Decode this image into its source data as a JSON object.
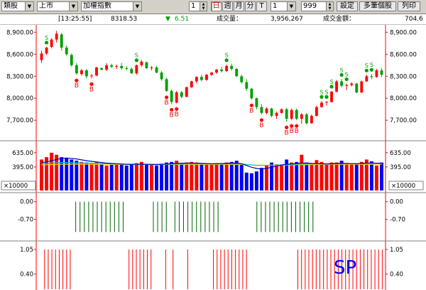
{
  "toolbar": {
    "period": "類股",
    "market": "上市",
    "index": "加權指數",
    "count1": "1",
    "buttons": [
      "日",
      "週",
      "月",
      "分",
      "T"
    ],
    "count2": "1",
    "count3": "999",
    "settings": "設定",
    "multi": "多筆個股",
    "print": "列印"
  },
  "infobar": {
    "time": "[13:25:55]",
    "price": "8318.53",
    "change_arrow": "▼",
    "change": "6.51",
    "volume_label": "成交量：",
    "volume": "3,956,267",
    "amount_label": "成交金額：",
    "amount": "704.6"
  },
  "axes": {
    "price_ticks": [
      "8,900.00",
      "8,600.00",
      "8,300.00",
      "8,000.00",
      "7,700.00"
    ],
    "volume_ticks": [
      "635.00",
      "395.00"
    ],
    "volume_unit": "×10000",
    "ind1_ticks": [
      "0.00",
      "-0.70"
    ],
    "ind2_ticks": [
      "1.05",
      "0.40"
    ]
  },
  "overlay_text": "SP",
  "colors": {
    "up": "#ff0000",
    "down": "#00a000",
    "vol_up": "#ff0000",
    "vol_down": "#0000ff",
    "ma1": "#0000c0",
    "ma2": "#00c8c8",
    "ma3": "#ffd000",
    "axis": "#ff0000",
    "ind_green": "#006400",
    "ind_red": "#ff0000",
    "sp_text": "#0000ff",
    "b_mark": "#ff0000",
    "s_mark": "#00a000"
  },
  "chart_data": {
    "type": "candlestick",
    "price_range": [
      7450,
      9000
    ],
    "volume_range": [
      0,
      800
    ],
    "candles": [
      {
        "o": 8520,
        "h": 8650,
        "l": 8480,
        "c": 8610
      },
      {
        "o": 8610,
        "h": 8700,
        "l": 8590,
        "c": 8690
      },
      {
        "o": 8700,
        "h": 8820,
        "l": 8680,
        "c": 8800
      },
      {
        "o": 8800,
        "h": 8920,
        "l": 8760,
        "c": 8880
      },
      {
        "o": 8870,
        "h": 8890,
        "l": 8650,
        "c": 8690
      },
      {
        "o": 8690,
        "h": 8720,
        "l": 8580,
        "c": 8600
      },
      {
        "o": 8590,
        "h": 8610,
        "l": 8430,
        "c": 8450
      },
      {
        "o": 8450,
        "h": 8480,
        "l": 8320,
        "c": 8340
      },
      {
        "o": 8330,
        "h": 8400,
        "l": 8310,
        "c": 8380
      },
      {
        "o": 8380,
        "h": 8400,
        "l": 8270,
        "c": 8300
      },
      {
        "o": 8300,
        "h": 8330,
        "l": 8270,
        "c": 8310
      },
      {
        "o": 8310,
        "h": 8430,
        "l": 8300,
        "c": 8420
      },
      {
        "o": 8410,
        "h": 8420,
        "l": 8380,
        "c": 8390
      },
      {
        "o": 8390,
        "h": 8480,
        "l": 8370,
        "c": 8450
      },
      {
        "o": 8450,
        "h": 8470,
        "l": 8410,
        "c": 8430
      },
      {
        "o": 8430,
        "h": 8460,
        "l": 8400,
        "c": 8440
      },
      {
        "o": 8440,
        "h": 8480,
        "l": 8390,
        "c": 8410
      },
      {
        "o": 8410,
        "h": 8440,
        "l": 8380,
        "c": 8400
      },
      {
        "o": 8400,
        "h": 8420,
        "l": 8330,
        "c": 8340
      },
      {
        "o": 8340,
        "h": 8460,
        "l": 8320,
        "c": 8450
      },
      {
        "o": 8450,
        "h": 8520,
        "l": 8430,
        "c": 8500
      },
      {
        "o": 8490,
        "h": 8500,
        "l": 8400,
        "c": 8410
      },
      {
        "o": 8410,
        "h": 8440,
        "l": 8380,
        "c": 8420
      },
      {
        "o": 8420,
        "h": 8440,
        "l": 8340,
        "c": 8350
      },
      {
        "o": 8350,
        "h": 8370,
        "l": 8240,
        "c": 8260
      },
      {
        "o": 8260,
        "h": 8280,
        "l": 8090,
        "c": 8100
      },
      {
        "o": 8100,
        "h": 8120,
        "l": 7920,
        "c": 7950
      },
      {
        "o": 7940,
        "h": 8100,
        "l": 7930,
        "c": 8080
      },
      {
        "o": 8080,
        "h": 8100,
        "l": 8000,
        "c": 8020
      },
      {
        "o": 8020,
        "h": 8160,
        "l": 8010,
        "c": 8150
      },
      {
        "o": 8150,
        "h": 8240,
        "l": 8140,
        "c": 8230
      },
      {
        "o": 8230,
        "h": 8300,
        "l": 8200,
        "c": 8290
      },
      {
        "o": 8290,
        "h": 8320,
        "l": 8230,
        "c": 8250
      },
      {
        "o": 8250,
        "h": 8330,
        "l": 8240,
        "c": 8320
      },
      {
        "o": 8320,
        "h": 8360,
        "l": 8300,
        "c": 8350
      },
      {
        "o": 8350,
        "h": 8400,
        "l": 8330,
        "c": 8390
      },
      {
        "o": 8390,
        "h": 8430,
        "l": 8350,
        "c": 8370
      },
      {
        "o": 8370,
        "h": 8460,
        "l": 8360,
        "c": 8440
      },
      {
        "o": 8440,
        "h": 8470,
        "l": 8380,
        "c": 8400
      },
      {
        "o": 8400,
        "h": 8410,
        "l": 8290,
        "c": 8300
      },
      {
        "o": 8300,
        "h": 8320,
        "l": 8200,
        "c": 8220
      },
      {
        "o": 8220,
        "h": 8260,
        "l": 8100,
        "c": 8130
      },
      {
        "o": 8130,
        "h": 8140,
        "l": 7980,
        "c": 8000
      },
      {
        "o": 8000,
        "h": 8010,
        "l": 7850,
        "c": 7880
      },
      {
        "o": 7880,
        "h": 7920,
        "l": 7780,
        "c": 7800
      },
      {
        "o": 7800,
        "h": 7880,
        "l": 7780,
        "c": 7860
      },
      {
        "o": 7860,
        "h": 7870,
        "l": 7740,
        "c": 7760
      },
      {
        "o": 7760,
        "h": 7820,
        "l": 7720,
        "c": 7800
      },
      {
        "o": 7800,
        "h": 7860,
        "l": 7790,
        "c": 7850
      },
      {
        "o": 7850,
        "h": 7870,
        "l": 7680,
        "c": 7720
      },
      {
        "o": 7720,
        "h": 7860,
        "l": 7700,
        "c": 7840
      },
      {
        "o": 7840,
        "h": 7860,
        "l": 7700,
        "c": 7720
      },
      {
        "o": 7720,
        "h": 7800,
        "l": 7650,
        "c": 7780
      },
      {
        "o": 7780,
        "h": 7800,
        "l": 7640,
        "c": 7660
      },
      {
        "o": 7660,
        "h": 7780,
        "l": 7650,
        "c": 7760
      },
      {
        "o": 7760,
        "h": 7900,
        "l": 7750,
        "c": 7880
      },
      {
        "o": 7880,
        "h": 7960,
        "l": 7870,
        "c": 7940
      },
      {
        "o": 7940,
        "h": 7960,
        "l": 7900,
        "c": 7950
      },
      {
        "o": 7950,
        "h": 8100,
        "l": 7940,
        "c": 8090
      },
      {
        "o": 8090,
        "h": 8250,
        "l": 8080,
        "c": 8230
      },
      {
        "o": 8230,
        "h": 8260,
        "l": 8150,
        "c": 8170
      },
      {
        "o": 8170,
        "h": 8200,
        "l": 8110,
        "c": 8180
      },
      {
        "o": 8180,
        "h": 8220,
        "l": 8160,
        "c": 8200
      },
      {
        "o": 8200,
        "h": 8210,
        "l": 8070,
        "c": 8080
      },
      {
        "o": 8080,
        "h": 8240,
        "l": 8070,
        "c": 8230
      },
      {
        "o": 8230,
        "h": 8320,
        "l": 8220,
        "c": 8300
      },
      {
        "o": 8300,
        "h": 8330,
        "l": 8260,
        "c": 8290
      },
      {
        "o": 8290,
        "h": 8400,
        "l": 8280,
        "c": 8380
      },
      {
        "o": 8380,
        "h": 8410,
        "l": 8290,
        "c": 8320
      }
    ],
    "volumes": [
      520,
      560,
      635,
      600,
      560,
      540,
      520,
      500,
      480,
      470,
      460,
      480,
      440,
      420,
      430,
      450,
      440,
      420,
      430,
      460,
      480,
      440,
      430,
      420,
      450,
      470,
      480,
      500,
      460,
      470,
      480,
      470,
      460,
      440,
      430,
      460,
      450,
      470,
      480,
      500,
      430,
      300,
      290,
      320,
      380,
      420,
      470,
      440,
      430,
      520,
      470,
      480,
      600,
      470,
      440,
      510,
      480,
      430,
      470,
      470,
      500,
      460,
      440,
      450,
      480,
      520,
      490,
      420,
      470
    ],
    "ma1": [
      470,
      480,
      500,
      520,
      540,
      545,
      540,
      530,
      515,
      500,
      490,
      480,
      470,
      460,
      455,
      450,
      445,
      440,
      438,
      440,
      442,
      440,
      438,
      436,
      440,
      444,
      450,
      455,
      458,
      460,
      460,
      458,
      455,
      452,
      448,
      450,
      452,
      455,
      458,
      460,
      450,
      420,
      390,
      370,
      360,
      370,
      390,
      410,
      430,
      440,
      445,
      450,
      460,
      460,
      455,
      450,
      448,
      445,
      448,
      452,
      455,
      455,
      450,
      450,
      455,
      460,
      462,
      458,
      458
    ],
    "ma2": [
      450,
      455,
      460,
      465,
      470,
      470,
      468,
      465,
      462,
      460,
      458,
      455,
      452,
      450,
      448,
      446,
      445,
      444,
      443,
      442,
      442,
      442,
      441,
      440,
      440,
      441,
      442,
      444,
      446,
      448,
      449,
      450,
      450,
      449,
      448,
      448,
      448,
      449,
      450,
      450,
      446,
      438,
      430,
      424,
      420,
      420,
      422,
      426,
      430,
      434,
      438,
      442,
      446,
      448,
      449,
      450,
      450,
      450,
      450,
      451,
      452,
      452,
      452,
      452,
      453,
      454,
      455,
      455,
      455
    ],
    "ma3": [
      430,
      432,
      435,
      438,
      440,
      441,
      442,
      442,
      442,
      441,
      441,
      440,
      440,
      439,
      439,
      438,
      438,
      438,
      437,
      437,
      437,
      437,
      436,
      436,
      436,
      436,
      437,
      437,
      438,
      438,
      438,
      438,
      438,
      438,
      438,
      438,
      438,
      438,
      438,
      438,
      436,
      433,
      430,
      428,
      426,
      425,
      425,
      426,
      427,
      428,
      430,
      432,
      434,
      435,
      436,
      437,
      437,
      438,
      438,
      439,
      439,
      440,
      440,
      440,
      441,
      441,
      442,
      442,
      442
    ],
    "indicator1_range": [
      -1.3,
      0.3
    ],
    "indicator1_bars": [
      0,
      0,
      0,
      0,
      0,
      0,
      0,
      0,
      -1,
      -1,
      -1,
      -1,
      -1,
      -1,
      -1,
      -1,
      -1,
      -1,
      -1,
      -1,
      0,
      0,
      0,
      0,
      0,
      0,
      -1,
      -1,
      -1,
      -1,
      0,
      -1,
      -1,
      -1,
      -1,
      -1,
      -1,
      -1,
      -1,
      -1,
      -1,
      -1,
      0,
      0,
      0,
      0,
      0,
      0,
      0,
      0,
      -1,
      -1,
      -1,
      -1,
      -1,
      -1,
      -1,
      -1,
      -1,
      -1,
      -1,
      -1,
      -1,
      -1,
      0,
      0,
      0,
      0,
      0,
      0,
      0,
      0,
      0,
      0,
      0,
      0,
      0,
      0,
      0,
      0
    ],
    "indicator2_range": [
      0,
      1.2
    ],
    "indicator2_bars": [
      0,
      1,
      1,
      1,
      1,
      1,
      1,
      1,
      1,
      0,
      0,
      0,
      0,
      0,
      0,
      0,
      0,
      0,
      0,
      0,
      0,
      0,
      0,
      0,
      1,
      1,
      1,
      1,
      1,
      1,
      1,
      0,
      0,
      0,
      1,
      0,
      1,
      0,
      0,
      0,
      1,
      0,
      0,
      0,
      0,
      0,
      0,
      1,
      1,
      1,
      1,
      1,
      1,
      1,
      1,
      1,
      1,
      0,
      0,
      0,
      0,
      0,
      0,
      0,
      0,
      0,
      0,
      0,
      0,
      0,
      1,
      1,
      1,
      1,
      1,
      1,
      1,
      1,
      1,
      1,
      1,
      1,
      1,
      1,
      1,
      1,
      1,
      1,
      1,
      1,
      1,
      1,
      1,
      1
    ],
    "b_marks": [
      7,
      10,
      25,
      26,
      27,
      42,
      44,
      49,
      50,
      51
    ],
    "s_marks": [
      1,
      19,
      37,
      56,
      57,
      58,
      60,
      61,
      65,
      66
    ]
  }
}
